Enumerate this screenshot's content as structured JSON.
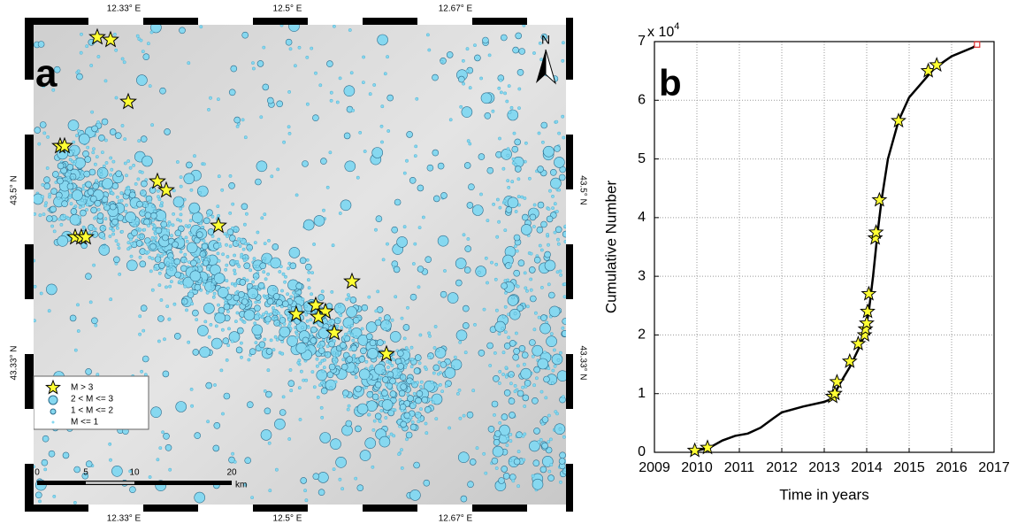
{
  "map": {
    "panel_label": "a",
    "north": "N",
    "top_labels": [
      "12.33° E",
      "12.5° E",
      "12.67° E"
    ],
    "bottom_labels": [
      "12.33° E",
      "12.5° E",
      "12.67° E"
    ],
    "left_labels": [
      "43.5° N",
      "43.33° N"
    ],
    "right_labels": [
      "43.5° N",
      "43.33° N"
    ],
    "legend": [
      "M > 3",
      "2 < M <= 3",
      "1 < M <= 2",
      "M <= 1"
    ],
    "scale_labels": [
      "0",
      "5",
      "10",
      "20"
    ],
    "scale_unit": "km"
  },
  "chart_data": {
    "type": "line",
    "panel_label": "b",
    "multiplier_base": "x 10",
    "multiplier_exp": "4",
    "xlabel": "Time in years",
    "ylabel": "Cumulative Number",
    "xlim": [
      2009,
      2017
    ],
    "xticks": [
      2009,
      2010,
      2011,
      2012,
      2013,
      2014,
      2015,
      2016,
      2017
    ],
    "ylim": [
      0,
      70000
    ],
    "yticks": [
      {
        "value": 0,
        "label": "0"
      },
      {
        "value": 10000,
        "label": "1"
      },
      {
        "value": 20000,
        "label": "2"
      },
      {
        "value": 30000,
        "label": "3"
      },
      {
        "value": 40000,
        "label": "4"
      },
      {
        "value": 50000,
        "label": "5"
      },
      {
        "value": 60000,
        "label": "6"
      },
      {
        "value": 70000,
        "label": "7"
      }
    ],
    "grid": true,
    "series": [
      {
        "color": "#000000",
        "marker": "none",
        "x": [
          2009.85,
          2010.0,
          2010.3,
          2010.6,
          2010.9,
          2011.2,
          2011.5,
          2011.8,
          2012.0,
          2012.5,
          2013.0,
          2013.2,
          2013.35,
          2013.6,
          2013.8,
          2013.95,
          2014.05,
          2014.15,
          2014.25,
          2014.35,
          2014.5,
          2014.75,
          2015.0,
          2015.3,
          2015.6,
          2016.0,
          2016.5,
          2016.6
        ],
        "values": [
          0,
          300,
          800,
          2000,
          2800,
          3200,
          4200,
          5800,
          6800,
          7800,
          8600,
          9200,
          11500,
          14500,
          17500,
          20000,
          24000,
          30000,
          37000,
          43000,
          50000,
          56500,
          60500,
          63000,
          65500,
          67500,
          69000,
          69500
        ]
      },
      {
        "color": "#ffff33",
        "marker": "star",
        "x": [
          2009.95,
          2010.25,
          2013.2,
          2013.25,
          2013.3,
          2013.6,
          2013.8,
          2013.95,
          2013.97,
          2014.0,
          2014.02,
          2014.05,
          2014.2,
          2014.22,
          2014.3,
          2014.75,
          2015.45,
          2015.65
        ],
        "values": [
          300,
          800,
          9500,
          10000,
          12000,
          15500,
          18500,
          20000,
          21000,
          22000,
          24000,
          27000,
          36500,
          37500,
          43000,
          56500,
          65000,
          66000
        ]
      },
      {
        "color": "#e03030",
        "marker": "square",
        "x": [
          2016.6
        ],
        "values": [
          69500
        ]
      }
    ]
  }
}
